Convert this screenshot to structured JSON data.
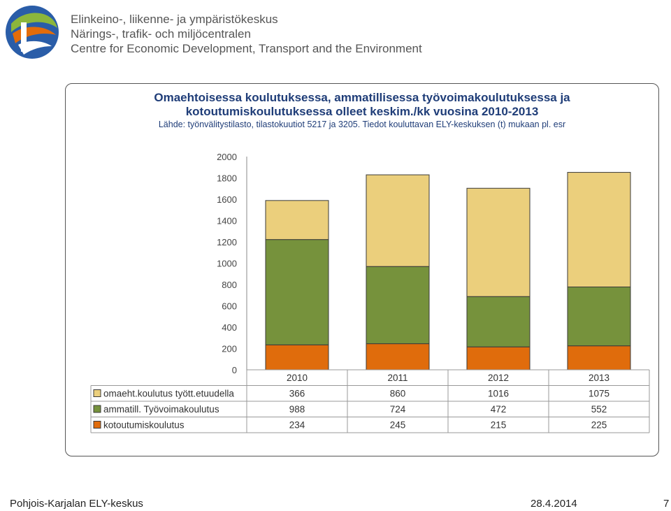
{
  "header": {
    "org_lines": [
      "Elinkeino-, liikenne- ja ympäristökeskus",
      "Närings-, trafik- och miljöcentralen",
      "Centre for Economic Development, Transport and the Environment"
    ]
  },
  "chart_data": {
    "type": "bar",
    "stacked": true,
    "title_lines": [
      "Omaehtoisessa koulutuksessa, ammatillisessa työvoimakoulutuksessa ja",
      "kotoutumiskoulutuksessa olleet keskim./kk vuosina 2010-2013"
    ],
    "subtitle": "Lähde: työnvälitystilasto, tilastokuutiot 5217 ja 3205. Tiedot kouluttavan ELY-keskuksen (t) mukaan pl. esr",
    "categories": [
      "2010",
      "2011",
      "2012",
      "2013"
    ],
    "series": [
      {
        "name": "kotoutumiskoulutus",
        "values": [
          234,
          245,
          215,
          225
        ],
        "color": "#e06c0c"
      },
      {
        "name": "ammatill. Työvoimakoulutus",
        "values": [
          988,
          724,
          472,
          552
        ],
        "color": "#76923c"
      },
      {
        "name": "omaeht.koulutus tyött.etuudella",
        "values": [
          366,
          860,
          1016,
          1075
        ],
        "color": "#ebcf7c"
      }
    ],
    "table_order": [
      0,
      1,
      2
    ],
    "legend_order": [
      2,
      1,
      0
    ],
    "ylim": [
      0,
      2000
    ],
    "yticks": [
      0,
      200,
      400,
      600,
      800,
      1000,
      1200,
      1400,
      1600,
      1800,
      2000
    ],
    "grid": false,
    "data_table": true
  },
  "footer": {
    "left": "Pohjois-Karjalan ELY-keskus",
    "date": "28.4.2014",
    "page": "7"
  }
}
